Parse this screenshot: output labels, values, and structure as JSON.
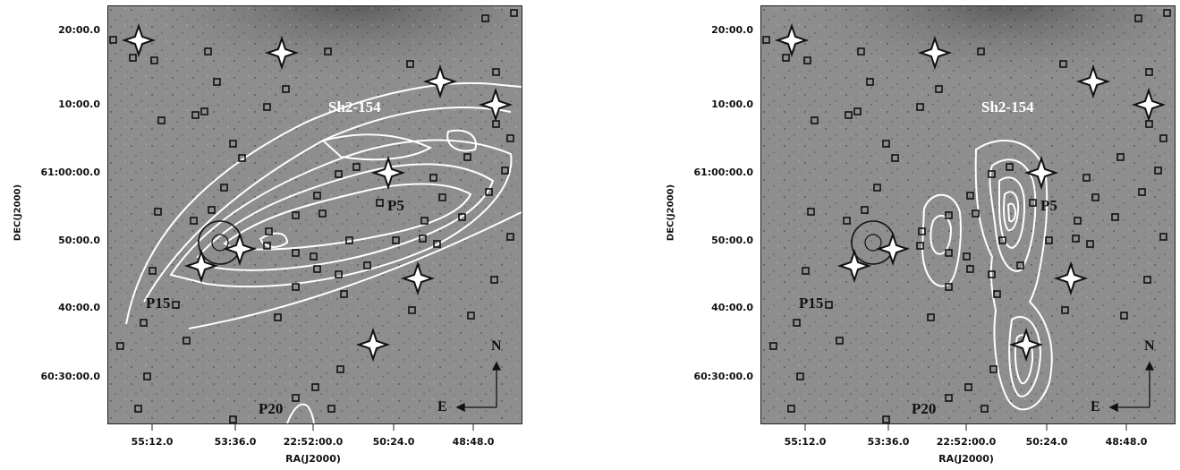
{
  "panels": [
    {
      "id": "left",
      "y_ticks": [
        "20:00.0",
        "10:00.0",
        "61:00:00.0",
        "50:00.0",
        "40:00.0",
        "60:30:00.0"
      ],
      "x_ticks": [
        "55:12.0",
        "53:36.0",
        "22:52:00.0",
        "50:24.0",
        "48:48.0"
      ],
      "xlabel": "RA(J2000)",
      "ylabel": "DEC(J2000)",
      "labels": {
        "region": "Sh2-154",
        "p5": "P5",
        "p15": "P15",
        "p20": "P20",
        "north": "N",
        "east": "E"
      }
    },
    {
      "id": "right",
      "y_ticks": [
        "20:00.0",
        "10:00.0",
        "61:00:00.0",
        "50:00.0",
        "40:00.0",
        "60:30:00.0"
      ],
      "x_ticks": [
        "55:12.0",
        "53:36.0",
        "22:52:00.0",
        "50:24.0",
        "48:48.0"
      ],
      "xlabel": "RA(J2000)",
      "ylabel": "DEC(J2000)",
      "labels": {
        "region": "Sh2-154",
        "p5": "P5",
        "p15": "P15",
        "p20": "P20",
        "north": "N",
        "east": "E"
      }
    }
  ],
  "colors": {
    "sky": "#8e8e8e",
    "nebula": "#5a5a5a",
    "contour": "#ffffff",
    "marker": "#111111"
  }
}
